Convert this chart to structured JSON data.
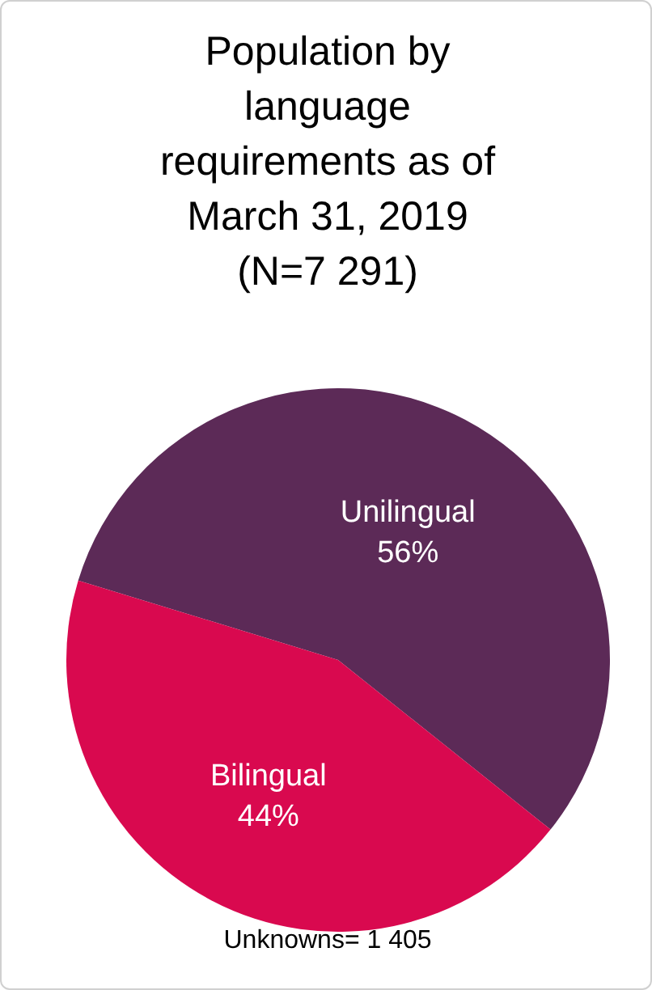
{
  "chart_data": {
    "type": "pie",
    "title": "Population by language requirements as of March 31, 2019 (N=7 291)",
    "categories": [
      "Unilingual",
      "Bilingual"
    ],
    "values": [
      56,
      44
    ],
    "value_labels": [
      "56%",
      "44%"
    ],
    "colors": [
      "#5c2a57",
      "#d9094f"
    ],
    "annotations": [
      "Unknowns= 1 405"
    ]
  }
}
